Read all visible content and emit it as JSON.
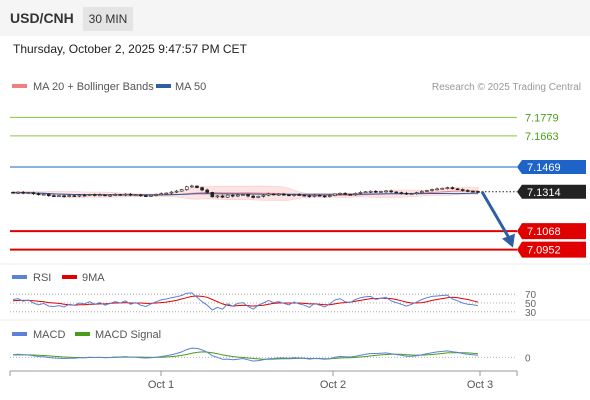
{
  "header": {
    "symbol": "USD/CNH",
    "timeframe": "30 MIN"
  },
  "datetime": "Thursday, October 2, 2025 9:47:57 PM CET",
  "colors": {
    "ma20": "#f08080",
    "ma50": "#2e5fa3",
    "resistance": "#8cc63f",
    "pivot": "#1e63c8",
    "support": "#e00000",
    "price_tag": "#222222",
    "rsi": "#5b82d6",
    "rsi_ma": "#e00000",
    "macd": "#5b82d6",
    "macd_signal": "#4a9d1c"
  },
  "chart_data": [
    {
      "type": "candlestick",
      "panel": "price",
      "legend": [
        {
          "name": "MA 20 + Bollinger Bands",
          "color": "#f08080"
        },
        {
          "name": "MA 50",
          "color": "#2e5fa3"
        }
      ],
      "watermark": "Research © 2025 Trading Central",
      "ylim": [
        7.09,
        7.19
      ],
      "last_price": 7.1314,
      "levels": [
        {
          "label": "7.1779",
          "value": 7.1779,
          "kind": "resistance"
        },
        {
          "label": "7.1663",
          "value": 7.1663,
          "kind": "resistance"
        },
        {
          "label": "7.1469",
          "value": 7.1469,
          "kind": "pivot"
        },
        {
          "label": "7.1314",
          "value": 7.1314,
          "kind": "last"
        },
        {
          "label": "7.1068",
          "value": 7.1068,
          "kind": "support"
        },
        {
          "label": "7.0952",
          "value": 7.0952,
          "kind": "support"
        }
      ],
      "close": [
        7.1308,
        7.1311,
        7.1305,
        7.1309,
        7.1302,
        7.1296,
        7.1299,
        7.129,
        7.1287,
        7.1289,
        7.1285,
        7.129,
        7.1288,
        7.1293,
        7.1291,
        7.1297,
        7.1292,
        7.1295,
        7.1289,
        7.1293,
        7.1297,
        7.1294,
        7.1299,
        7.1292,
        7.1295,
        7.129,
        7.1287,
        7.1292,
        7.1297,
        7.1302,
        7.1306,
        7.1312,
        7.1318,
        7.1328,
        7.1345,
        7.135,
        7.134,
        7.1325,
        7.131,
        7.1282,
        7.1288,
        7.128,
        7.1293,
        7.1287,
        7.1294,
        7.1297,
        7.1287,
        7.1278,
        7.1286,
        7.1292,
        7.13,
        7.1296,
        7.1299,
        7.1295,
        7.1291,
        7.1297,
        7.1293,
        7.129,
        7.1285,
        7.1292,
        7.1288,
        7.1284,
        7.129,
        7.13,
        7.1304,
        7.1298,
        7.1296,
        7.1304,
        7.131,
        7.1314,
        7.1317,
        7.1312,
        7.1316,
        7.1319,
        7.1313,
        7.1309,
        7.1305,
        7.13,
        7.1303,
        7.1308,
        7.1316,
        7.1322,
        7.1328,
        7.1332,
        7.1336,
        7.134,
        7.1333,
        7.1328,
        7.1322,
        7.1318,
        7.1316,
        7.1314
      ]
    },
    {
      "type": "line",
      "panel": "rsi",
      "legend": [
        {
          "name": "RSI",
          "color": "#5b82d6"
        },
        {
          "name": "9MA",
          "color": "#e00000"
        }
      ],
      "levels": [
        70,
        50,
        30
      ],
      "ylim": [
        25,
        75
      ],
      "series": [
        {
          "name": "RSI",
          "values": [
            58,
            60,
            54,
            57,
            50,
            46,
            49,
            43,
            42,
            44,
            41,
            47,
            45,
            50,
            48,
            53,
            47,
            51,
            45,
            49,
            53,
            50,
            55,
            47,
            51,
            45,
            42,
            48,
            53,
            57,
            59,
            62,
            64,
            67,
            72,
            73,
            63,
            53,
            45,
            34,
            40,
            36,
            48,
            43,
            49,
            51,
            42,
            36,
            45,
            50,
            56,
            51,
            53,
            49,
            46,
            52,
            48,
            45,
            40,
            49,
            45,
            41,
            48,
            57,
            60,
            53,
            51,
            58,
            62,
            64,
            65,
            58,
            61,
            63,
            55,
            51,
            47,
            43,
            47,
            52,
            58,
            62,
            65,
            66,
            67,
            68,
            59,
            55,
            50,
            47,
            46,
            44
          ]
        },
        {
          "name": "9MA",
          "values": [
            55,
            56,
            56,
            56,
            55,
            54,
            53,
            51,
            50,
            49,
            47,
            46,
            45,
            46,
            46,
            47,
            47,
            48,
            48,
            49,
            50,
            50,
            51,
            50,
            50,
            50,
            49,
            49,
            50,
            51,
            52,
            54,
            56,
            59,
            62,
            65,
            66,
            65,
            63,
            58,
            53,
            48,
            45,
            43,
            44,
            45,
            44,
            43,
            44,
            45,
            47,
            49,
            50,
            50,
            50,
            50,
            50,
            49,
            48,
            48,
            47,
            46,
            46,
            48,
            50,
            51,
            52,
            54,
            56,
            58,
            60,
            60,
            61,
            61,
            60,
            58,
            55,
            52,
            50,
            50,
            51,
            53,
            56,
            58,
            60,
            62,
            63,
            62,
            60,
            58,
            55,
            52
          ]
        }
      ]
    },
    {
      "type": "line",
      "panel": "macd",
      "legend": [
        {
          "name": "MACD",
          "color": "#5b82d6"
        },
        {
          "name": "MACD Signal",
          "color": "#4a9d1c"
        }
      ],
      "zero_label": "0",
      "ylim": [
        -10,
        12
      ],
      "series": [
        {
          "name": "MACD",
          "values": [
            2,
            2.3,
            2,
            1.8,
            1.2,
            0.6,
            0.4,
            -0.2,
            -0.6,
            -0.8,
            -1,
            -0.8,
            -0.8,
            -0.4,
            -0.4,
            0,
            -0.2,
            0,
            -0.4,
            -0.2,
            0.2,
            0.2,
            0.5,
            0.1,
            0.1,
            -0.3,
            -0.6,
            -0.4,
            0,
            0.6,
            1.2,
            2,
            3,
            4.2,
            6,
            7.2,
            7,
            5.8,
            4,
            1.2,
            0,
            -1.6,
            -1.4,
            -2,
            -1.5,
            -1,
            -2,
            -3,
            -2.6,
            -2,
            -1.2,
            -1,
            -0.6,
            -0.6,
            -0.8,
            -0.4,
            -0.6,
            -0.8,
            -1.4,
            -1,
            -1.2,
            -1.6,
            -1.2,
            0,
            0.6,
            0.4,
            0.2,
            0.8,
            1.6,
            2.4,
            3,
            3,
            3.2,
            3.4,
            2.8,
            2.2,
            1.6,
            0.8,
            0.8,
            1.2,
            2,
            2.8,
            3.6,
            4.2,
            4.6,
            5,
            4.4,
            3.8,
            3,
            2.4,
            2,
            1.6
          ]
        },
        {
          "name": "MACD Signal",
          "values": [
            1.8,
            1.9,
            1.9,
            1.9,
            1.8,
            1.6,
            1.4,
            1.1,
            0.8,
            0.5,
            0.2,
            0,
            -0.2,
            -0.2,
            -0.3,
            -0.2,
            -0.2,
            -0.2,
            -0.2,
            -0.2,
            -0.1,
            0,
            0.1,
            0.1,
            0.1,
            0.1,
            0,
            -0.1,
            -0.1,
            0,
            0.2,
            0.5,
            0.9,
            1.5,
            2.2,
            3.1,
            3.8,
            4.2,
            4.1,
            3.5,
            2.8,
            1.9,
            1.2,
            0.6,
            0.1,
            -0.2,
            -0.6,
            -1,
            -1.3,
            -1.5,
            -1.5,
            -1.4,
            -1.3,
            -1.2,
            -1.1,
            -1,
            -0.9,
            -0.9,
            -1,
            -1,
            -1,
            -1.1,
            -1.1,
            -0.9,
            -0.6,
            -0.4,
            -0.3,
            -0.1,
            0.2,
            0.6,
            1.1,
            1.5,
            1.9,
            2.2,
            2.4,
            2.4,
            2.3,
            2,
            1.8,
            1.7,
            1.7,
            1.9,
            2.2,
            2.6,
            3,
            3.4,
            3.6,
            3.7,
            3.6,
            3.4,
            3.1,
            2.8
          ]
        }
      ]
    }
  ],
  "x_axis": {
    "labels": [
      "Oct 1",
      "Oct 2",
      "Oct 3"
    ]
  }
}
